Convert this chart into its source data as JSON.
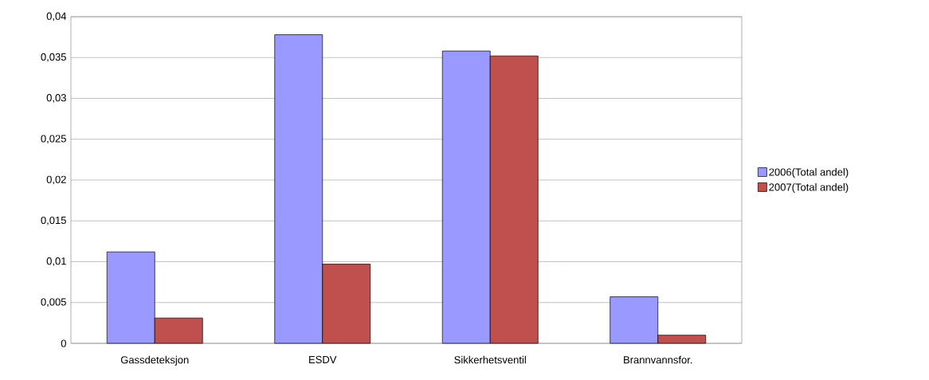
{
  "chart_data": {
    "type": "bar",
    "categories": [
      "Gassdeteksjon",
      "ESDV",
      "Sikkerhetsventil",
      "Brannvannsfor."
    ],
    "series": [
      {
        "name": "2006(Total andel)",
        "color": "#9999ff",
        "values": [
          0.0112,
          0.0378,
          0.0358,
          0.0057
        ]
      },
      {
        "name": "2007(Total andel)",
        "color": "#c0504d",
        "values": [
          0.0031,
          0.0097,
          0.0352,
          0.001
        ]
      }
    ],
    "ylim": [
      0,
      0.04
    ],
    "yticks": [
      0,
      {
        "value": 0.005,
        "label": "0,005"
      },
      {
        "value": 0.01,
        "label": "0,01"
      },
      {
        "value": 0.015,
        "label": "0,015"
      },
      {
        "value": 0.02,
        "label": "0,02"
      },
      {
        "value": 0.025,
        "label": "0,025"
      },
      {
        "value": 0.03,
        "label": "0,03"
      },
      {
        "value": 0.035,
        "label": "0,035"
      },
      {
        "value": 0.04,
        "label": "0,04"
      }
    ],
    "grid": "y",
    "legend": "right"
  }
}
